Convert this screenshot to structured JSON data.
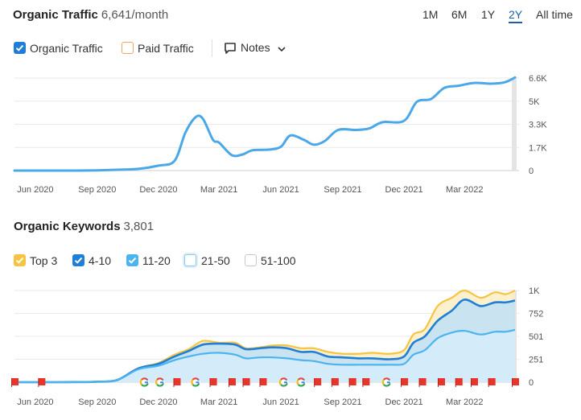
{
  "traffic": {
    "title": "Organic Traffic",
    "value": "6,641/month",
    "ranges": [
      "1M",
      "6M",
      "1Y",
      "2Y",
      "All time"
    ],
    "active_range": "2Y",
    "legend": {
      "organic": {
        "label": "Organic Traffic",
        "checked": true,
        "color": "#4ba8e8"
      },
      "paid": {
        "label": "Paid Traffic",
        "checked": false,
        "color": "#f0a45d"
      }
    },
    "notes_label": "Notes"
  },
  "keywords": {
    "title": "Organic Keywords",
    "value": "3,801",
    "legend": [
      {
        "label": "Top 3",
        "checked": true,
        "color": "#f6c343"
      },
      {
        "label": "4-10",
        "checked": true,
        "color": "#1f7fd6"
      },
      {
        "label": "11-20",
        "checked": true,
        "color": "#4ab4f0"
      },
      {
        "label": "21-50",
        "checked": false,
        "color": "#8fc8ee"
      },
      {
        "label": "51-100",
        "checked": false,
        "color": "#c8c8c8"
      }
    ]
  },
  "chart_data": [
    {
      "type": "line",
      "x_ticks": [
        "Jun 2020",
        "Sep 2020",
        "Dec 2020",
        "Mar 2021",
        "Jun 2021",
        "Sep 2021",
        "Dec 2021",
        "Mar 2022"
      ],
      "y_ticks": [
        "0",
        "1.7K",
        "3.3K",
        "5K",
        "6.6K"
      ],
      "ylim": [
        0,
        6600
      ],
      "color": "#4ba8e8",
      "series": [
        {
          "name": "Organic Traffic",
          "points": [
            [
              "2020-05-01",
              0
            ],
            [
              "2020-06-01",
              0
            ],
            [
              "2020-07-01",
              0
            ],
            [
              "2020-08-01",
              0
            ],
            [
              "2020-09-01",
              20
            ],
            [
              "2020-10-01",
              60
            ],
            [
              "2020-11-01",
              120
            ],
            [
              "2020-12-01",
              350
            ],
            [
              "2020-12-25",
              700
            ],
            [
              "2021-01-10",
              2700
            ],
            [
              "2021-01-25",
              3800
            ],
            [
              "2021-02-05",
              3700
            ],
            [
              "2021-02-20",
              2200
            ],
            [
              "2021-03-01",
              2000
            ],
            [
              "2021-03-20",
              1100
            ],
            [
              "2021-04-05",
              1150
            ],
            [
              "2021-04-20",
              1450
            ],
            [
              "2021-05-15",
              1500
            ],
            [
              "2021-06-01",
              1700
            ],
            [
              "2021-06-15",
              2500
            ],
            [
              "2021-07-05",
              2200
            ],
            [
              "2021-07-20",
              1850
            ],
            [
              "2021-08-05",
              2100
            ],
            [
              "2021-08-25",
              2900
            ],
            [
              "2021-09-20",
              2900
            ],
            [
              "2021-10-10",
              3000
            ],
            [
              "2021-10-30",
              3450
            ],
            [
              "2021-12-01",
              3550
            ],
            [
              "2021-12-20",
              4900
            ],
            [
              "2022-01-10",
              5100
            ],
            [
              "2022-01-30",
              5900
            ],
            [
              "2022-02-20",
              6050
            ],
            [
              "2022-03-15",
              6250
            ],
            [
              "2022-04-10",
              6200
            ],
            [
              "2022-04-30",
              6300
            ],
            [
              "2022-05-15",
              6641
            ]
          ]
        }
      ]
    },
    {
      "type": "area",
      "x_ticks": [
        "Jun 2020",
        "Sep 2020",
        "Dec 2020",
        "Mar 2021",
        "Jun 2021",
        "Sep 2021",
        "Dec 2021",
        "Mar 2022"
      ],
      "y_ticks": [
        "0",
        "251",
        "501",
        "752",
        "1K"
      ],
      "ylim": [
        0,
        1000
      ],
      "x_dates": [
        "2020-05-01",
        "2020-06-01",
        "2020-07-01",
        "2020-08-01",
        "2020-09-01",
        "2020-10-01",
        "2020-11-01",
        "2020-12-01",
        "2020-12-25",
        "2021-01-15",
        "2021-02-05",
        "2021-03-01",
        "2021-03-25",
        "2021-04-10",
        "2021-05-01",
        "2021-05-20",
        "2021-06-10",
        "2021-07-01",
        "2021-07-20",
        "2021-08-10",
        "2021-09-01",
        "2021-09-25",
        "2021-10-15",
        "2021-11-10",
        "2021-12-01",
        "2021-12-15",
        "2022-01-01",
        "2022-01-20",
        "2022-02-10",
        "2022-03-01",
        "2022-03-25",
        "2022-04-15",
        "2022-05-01",
        "2022-05-15"
      ],
      "series": [
        {
          "name": "Top 3",
          "color": "#f6c343",
          "values": [
            0,
            0,
            0,
            2,
            5,
            25,
            150,
            210,
            300,
            360,
            450,
            430,
            430,
            370,
            380,
            400,
            400,
            370,
            370,
            330,
            310,
            310,
            320,
            310,
            350,
            520,
            580,
            830,
            920,
            1000,
            920,
            980,
            960,
            1000
          ]
        },
        {
          "name": "4-10",
          "color": "#1f7fd6",
          "values": [
            0,
            0,
            0,
            2,
            5,
            25,
            150,
            200,
            280,
            340,
            410,
            420,
            410,
            360,
            370,
            380,
            370,
            330,
            330,
            280,
            270,
            260,
            260,
            250,
            280,
            430,
            500,
            670,
            780,
            900,
            830,
            870,
            870,
            890
          ]
        },
        {
          "name": "11-20",
          "color": "#4ab4f0",
          "values": [
            0,
            0,
            0,
            2,
            5,
            25,
            140,
            180,
            240,
            280,
            310,
            320,
            300,
            260,
            270,
            270,
            260,
            240,
            230,
            200,
            190,
            190,
            190,
            190,
            200,
            300,
            350,
            480,
            540,
            560,
            520,
            550,
            550,
            570
          ]
        }
      ],
      "markers": [
        {
          "type": "flag",
          "date": "2020-05-01"
        },
        {
          "type": "flag",
          "date": "2020-06-10"
        },
        {
          "type": "google",
          "date": "2020-11-10"
        },
        {
          "type": "google",
          "date": "2020-12-03"
        },
        {
          "type": "flag",
          "date": "2020-12-28"
        },
        {
          "type": "google",
          "date": "2021-01-25"
        },
        {
          "type": "flag",
          "date": "2021-02-20"
        },
        {
          "type": "flag",
          "date": "2021-03-20"
        },
        {
          "type": "flag",
          "date": "2021-04-10"
        },
        {
          "type": "flag",
          "date": "2021-05-05"
        },
        {
          "type": "google",
          "date": "2021-06-05"
        },
        {
          "type": "google",
          "date": "2021-07-01"
        },
        {
          "type": "flag",
          "date": "2021-07-25"
        },
        {
          "type": "flag",
          "date": "2021-08-20"
        },
        {
          "type": "flag",
          "date": "2021-09-15"
        },
        {
          "type": "flag",
          "date": "2021-10-05"
        },
        {
          "type": "google",
          "date": "2021-11-05"
        },
        {
          "type": "flag",
          "date": "2021-12-01"
        },
        {
          "type": "flag",
          "date": "2021-12-28"
        },
        {
          "type": "flag",
          "date": "2022-01-25"
        },
        {
          "type": "flag",
          "date": "2022-02-20"
        },
        {
          "type": "flag",
          "date": "2022-03-15"
        },
        {
          "type": "flag",
          "date": "2022-04-10"
        },
        {
          "type": "flag",
          "date": "2022-05-15"
        }
      ]
    }
  ]
}
